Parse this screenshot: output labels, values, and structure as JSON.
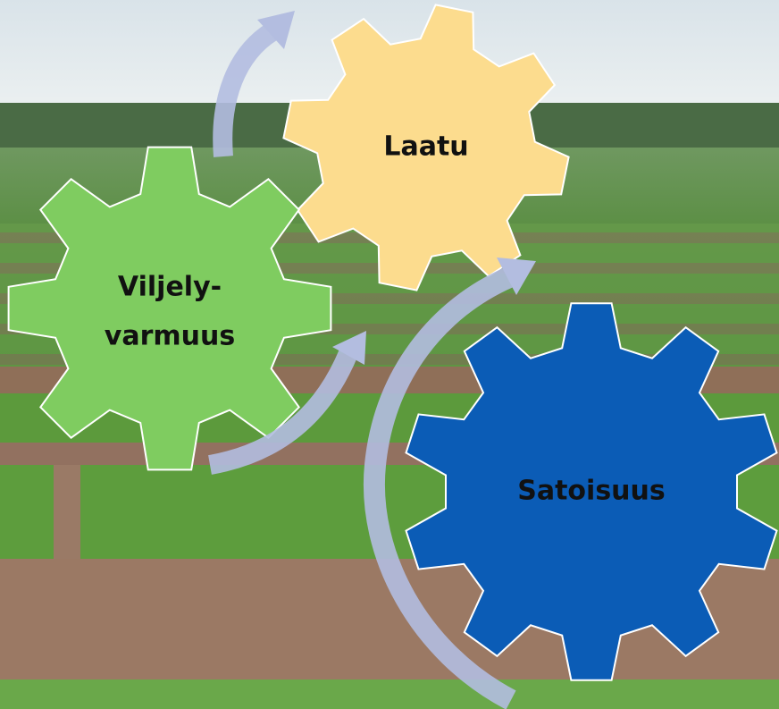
{
  "nodes": [
    {
      "label": "Laatu"
    },
    {
      "label_lines": [
        "Viljely-",
        "varmuus"
      ]
    },
    {
      "label": "Satoisuus"
    }
  ]
}
